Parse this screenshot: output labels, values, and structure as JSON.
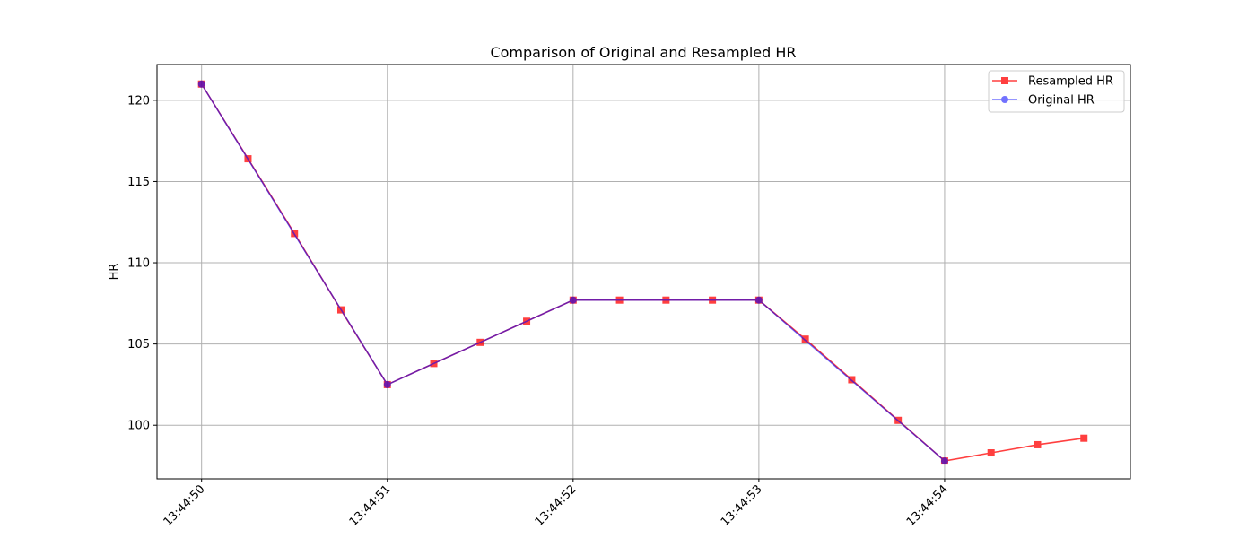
{
  "chart_data": {
    "type": "line",
    "title": "Comparison of Original and Resampled HR",
    "xlabel": "",
    "ylabel": "HR",
    "grid": true,
    "legend_position": "top-right",
    "x_ticks": [
      "13:44:50",
      "13:44:51",
      "13:44:52",
      "13:44:53",
      "13:44:54"
    ],
    "y_ticks": [
      100,
      105,
      110,
      115,
      120
    ],
    "xlim": [
      "13:44:49.760",
      "13:44:55.000"
    ],
    "ylim": [
      96.7,
      122.2
    ],
    "series": [
      {
        "name": "Resampled HR",
        "color": "#ff0000",
        "marker": "square",
        "x": [
          "13:44:50.00",
          "13:44:50.25",
          "13:44:50.50",
          "13:44:50.75",
          "13:44:51.00",
          "13:44:51.25",
          "13:44:51.50",
          "13:44:51.75",
          "13:44:52.00",
          "13:44:52.25",
          "13:44:52.50",
          "13:44:52.75",
          "13:44:53.00",
          "13:44:53.25",
          "13:44:53.50",
          "13:44:53.75",
          "13:44:54.00",
          "13:44:54.25",
          "13:44:54.50",
          "13:44:54.75"
        ],
        "values": [
          121.0,
          116.4,
          111.8,
          107.1,
          102.5,
          103.8,
          105.1,
          106.4,
          107.7,
          107.7,
          107.7,
          107.7,
          107.7,
          105.3,
          102.8,
          100.3,
          97.8,
          98.3,
          98.8,
          99.2
        ]
      },
      {
        "name": "Original HR",
        "color": "#0000ff",
        "marker": "circle",
        "x": [
          "13:44:50",
          "13:44:51",
          "13:44:52",
          "13:44:53",
          "13:44:54"
        ],
        "values": [
          121.0,
          102.5,
          107.7,
          107.7,
          97.8
        ]
      }
    ]
  }
}
